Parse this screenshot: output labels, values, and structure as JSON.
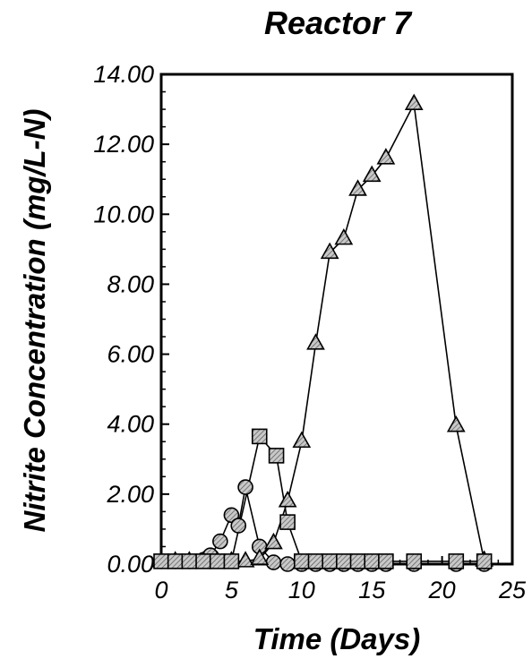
{
  "chart_data": {
    "type": "line",
    "title": "Reactor 7",
    "xlabel": "Time (Days)",
    "ylabel": "Nitrite Concentration (mg/L-N)",
    "xlim": [
      0,
      25
    ],
    "ylim": [
      0,
      14
    ],
    "x_ticks": [
      "0",
      "5",
      "10",
      "15",
      "20",
      "25"
    ],
    "y_ticks": [
      "0.00",
      "2.00",
      "4.00",
      "6.00",
      "8.00",
      "10.00",
      "12.00",
      "14.00"
    ],
    "grid": false,
    "series": [
      {
        "marker": "circle",
        "x": [
          0,
          1,
          2,
          3,
          3.5,
          4.2,
          5,
          5.5,
          6,
          7,
          8,
          9,
          10,
          11,
          12,
          13,
          14,
          15,
          16,
          18,
          21,
          23
        ],
        "y": [
          0.08,
          0.08,
          0.08,
          0.12,
          0.25,
          0.65,
          1.4,
          1.1,
          2.2,
          0.5,
          0.05,
          0,
          0,
          0,
          0,
          0,
          0,
          0,
          0,
          0,
          0,
          0
        ]
      },
      {
        "marker": "triangle",
        "x": [
          0,
          1,
          2,
          3,
          4,
          5,
          6,
          7,
          8,
          9,
          10,
          11,
          12,
          13,
          14,
          15,
          16,
          18,
          21,
          23
        ],
        "y": [
          0.08,
          0.08,
          0.08,
          0.08,
          0.08,
          0.08,
          0.08,
          0.15,
          0.6,
          1.8,
          3.5,
          6.3,
          8.9,
          9.3,
          10.7,
          11.1,
          11.6,
          13.15,
          3.95,
          0.1
        ]
      },
      {
        "marker": "square",
        "x": [
          0,
          1,
          2,
          3,
          4,
          5,
          7,
          8.2,
          9,
          10,
          11,
          12,
          13,
          14,
          15,
          16,
          18,
          21,
          23
        ],
        "y": [
          0.08,
          0.08,
          0.08,
          0.08,
          0.08,
          0.08,
          3.65,
          3.1,
          1.2,
          0.08,
          0.08,
          0.08,
          0.08,
          0.08,
          0.08,
          0.08,
          0.08,
          0.08,
          0.08
        ]
      }
    ],
    "colors": {
      "marker_fill": "#b9b9b9",
      "line": "#000000",
      "background": "#ffffff"
    }
  }
}
